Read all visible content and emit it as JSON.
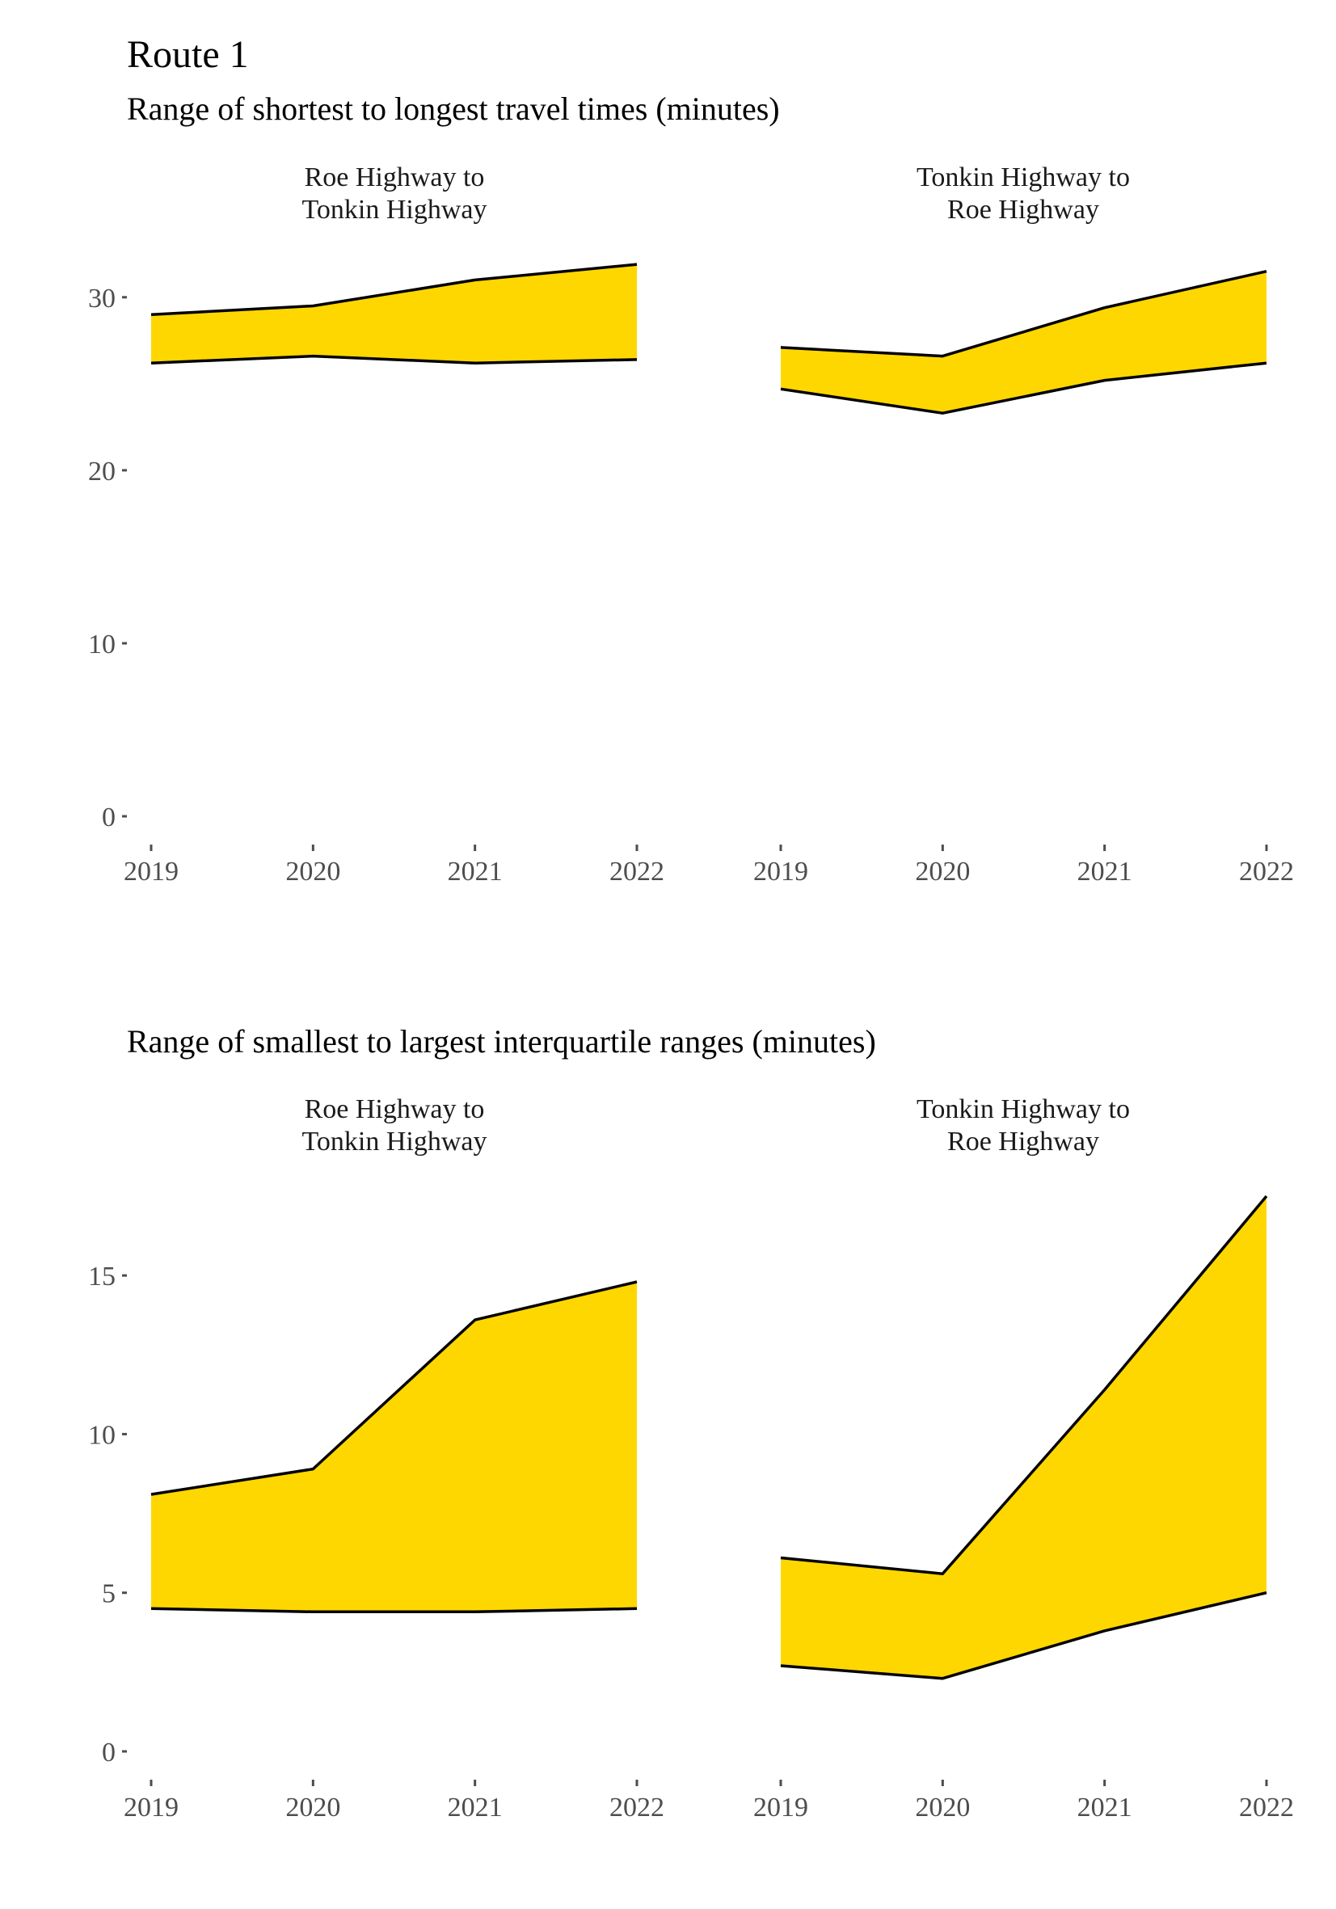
{
  "title": "Route 1",
  "colors": {
    "fill": "#FFD700",
    "line": "#000000",
    "tick": "#4d4d4d"
  },
  "chart_data": [
    {
      "type": "area",
      "subtitle": "Range of shortest to longest travel times (minutes)",
      "ylim": [
        0,
        32
      ],
      "yticks": [
        0,
        10,
        20,
        30
      ],
      "x": [
        "2019",
        "2020",
        "2021",
        "2022"
      ],
      "panels": [
        {
          "strip": [
            "Roe Highway to",
            "Tonkin Highway"
          ],
          "lower": [
            26.2,
            26.6,
            26.2,
            26.4
          ],
          "upper": [
            29.0,
            29.5,
            31.0,
            31.9
          ]
        },
        {
          "strip": [
            "Tonkin Highway to",
            "Roe Highway"
          ],
          "lower": [
            24.7,
            23.3,
            25.2,
            26.2
          ],
          "upper": [
            27.1,
            26.6,
            29.4,
            31.5
          ]
        }
      ]
    },
    {
      "type": "area",
      "subtitle": "Range of smallest to largest interquartile ranges (minutes)",
      "ylim": [
        0,
        17.5
      ],
      "yticks": [
        0,
        5,
        10,
        15
      ],
      "x": [
        "2019",
        "2020",
        "2021",
        "2022"
      ],
      "panels": [
        {
          "strip": [
            "Roe Highway to",
            "Tonkin Highway"
          ],
          "lower": [
            4.5,
            4.4,
            4.4,
            4.5
          ],
          "upper": [
            8.1,
            8.9,
            13.6,
            14.8
          ]
        },
        {
          "strip": [
            "Tonkin Highway to",
            "Roe Highway"
          ],
          "lower": [
            2.7,
            2.3,
            3.8,
            5.0
          ],
          "upper": [
            6.1,
            5.6,
            11.4,
            17.5
          ]
        }
      ]
    }
  ]
}
